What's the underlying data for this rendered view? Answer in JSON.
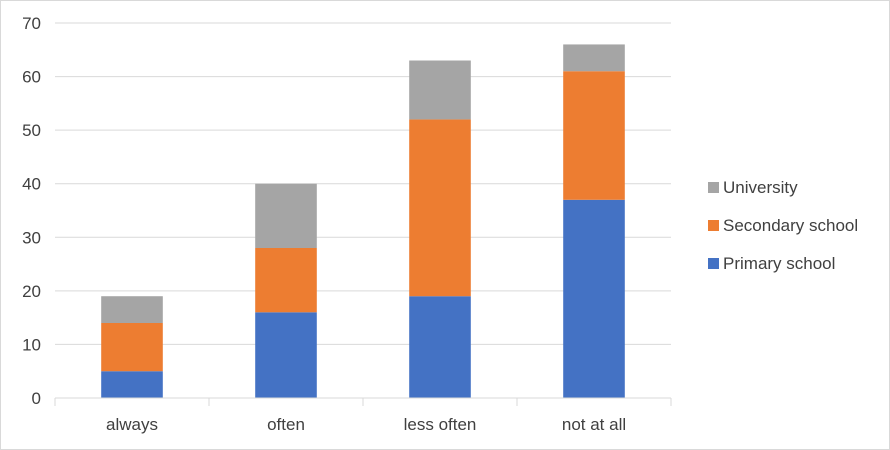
{
  "chart_data": {
    "type": "bar",
    "stacked": true,
    "categories": [
      "always",
      "often",
      "less often",
      "not at all"
    ],
    "series": [
      {
        "name": "Primary school",
        "color": "#4472c4",
        "values": [
          5,
          16,
          19,
          37
        ]
      },
      {
        "name": "Secondary school",
        "color": "#ed7d31",
        "values": [
          9,
          12,
          33,
          24
        ]
      },
      {
        "name": "University",
        "color": "#a5a5a5",
        "values": [
          5,
          12,
          11,
          5
        ]
      }
    ],
    "y_ticks": [
      "0",
      "10",
      "20",
      "30",
      "40",
      "50",
      "60",
      "70"
    ],
    "ylim": [
      0,
      70
    ],
    "grid": true,
    "legend_position": "right",
    "title": "",
    "xlabel": "",
    "ylabel": ""
  }
}
